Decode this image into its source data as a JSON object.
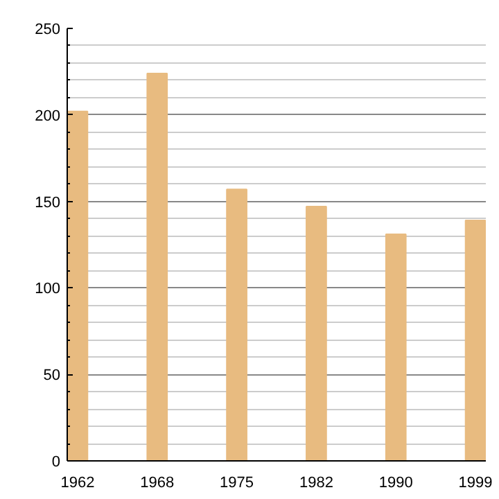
{
  "chart_data": {
    "type": "bar",
    "categories": [
      "1962",
      "1968",
      "1975",
      "1982",
      "1990",
      "1999"
    ],
    "values": [
      202,
      224,
      157,
      147,
      131,
      139
    ],
    "color": "#e8bb80",
    "ylim": [
      0,
      250
    ],
    "yticks": [
      0,
      50,
      100,
      150,
      200,
      250
    ],
    "grid": "y"
  }
}
